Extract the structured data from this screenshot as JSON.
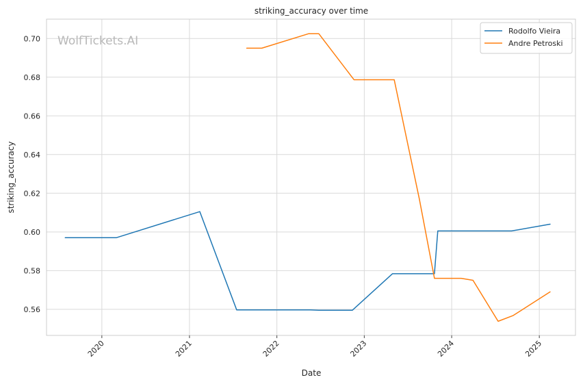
{
  "chart_data": {
    "type": "line",
    "title": "striking_accuracy over time",
    "xlabel": "Date",
    "ylabel": "striking_accuracy",
    "watermark": "WolfTickets.AI",
    "xlim": [
      "2019-05-15",
      "2025-06-01"
    ],
    "ylim": [
      0.5465,
      0.71
    ],
    "x_ticks": [
      {
        "date": "2020-01-01",
        "label": "2020"
      },
      {
        "date": "2021-01-01",
        "label": "2021"
      },
      {
        "date": "2022-01-01",
        "label": "2022"
      },
      {
        "date": "2023-01-01",
        "label": "2023"
      },
      {
        "date": "2024-01-01",
        "label": "2024"
      },
      {
        "date": "2025-01-01",
        "label": "2025"
      }
    ],
    "y_ticks": [
      {
        "value": 0.56,
        "label": "0.56"
      },
      {
        "value": 0.58,
        "label": "0.58"
      },
      {
        "value": 0.6,
        "label": "0.60"
      },
      {
        "value": 0.62,
        "label": "0.62"
      },
      {
        "value": 0.64,
        "label": "0.64"
      },
      {
        "value": 0.66,
        "label": "0.66"
      },
      {
        "value": 0.68,
        "label": "0.68"
      },
      {
        "value": 0.7,
        "label": "0.70"
      }
    ],
    "grid": true,
    "legend_position": "top-right",
    "series": [
      {
        "name": "Rodolfo Vieira",
        "color": "#1f77b4",
        "points": [
          {
            "x": "2019-08-01",
            "y": 0.597
          },
          {
            "x": "2020-03-01",
            "y": 0.597
          },
          {
            "x": "2021-02-13",
            "y": 0.6105
          },
          {
            "x": "2021-07-17",
            "y": 0.5597
          },
          {
            "x": "2022-05-21",
            "y": 0.5597
          },
          {
            "x": "2022-06-25",
            "y": 0.5595
          },
          {
            "x": "2022-11-12",
            "y": 0.5595
          },
          {
            "x": "2023-04-29",
            "y": 0.5784
          },
          {
            "x": "2023-10-21",
            "y": 0.5784
          },
          {
            "x": "2023-11-04",
            "y": 0.6005
          },
          {
            "x": "2024-09-07",
            "y": 0.6005
          },
          {
            "x": "2025-02-15",
            "y": 0.604
          }
        ]
      },
      {
        "name": "Andre Petroski",
        "color": "#ff7f0e",
        "points": [
          {
            "x": "2021-08-28",
            "y": 0.695
          },
          {
            "x": "2021-10-30",
            "y": 0.695
          },
          {
            "x": "2022-05-14",
            "y": 0.7025
          },
          {
            "x": "2022-06-25",
            "y": 0.7025
          },
          {
            "x": "2022-11-19",
            "y": 0.6787
          },
          {
            "x": "2023-05-06",
            "y": 0.6787
          },
          {
            "x": "2023-08-19",
            "y": 0.617
          },
          {
            "x": "2023-10-21",
            "y": 0.576
          },
          {
            "x": "2024-02-10",
            "y": 0.576
          },
          {
            "x": "2024-03-30",
            "y": 0.575
          },
          {
            "x": "2024-07-13",
            "y": 0.5538
          },
          {
            "x": "2024-09-14",
            "y": 0.5568
          },
          {
            "x": "2025-02-15",
            "y": 0.569
          }
        ]
      }
    ]
  }
}
